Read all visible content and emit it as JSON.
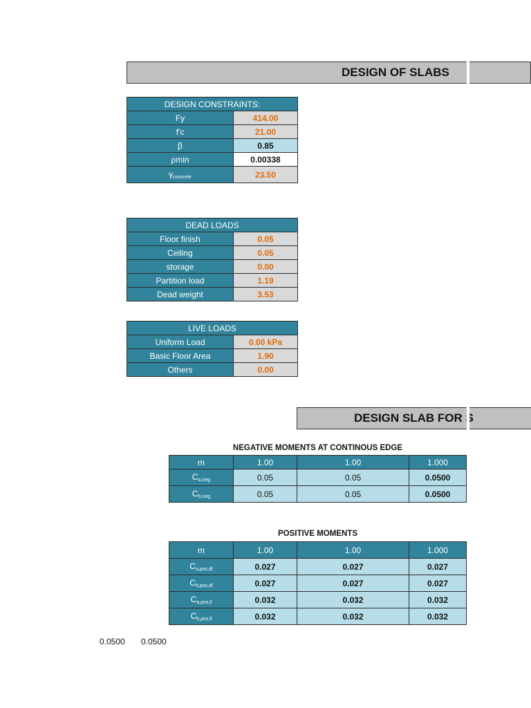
{
  "title1": "DESIGN OF SLABS",
  "title2": "DESIGN SLAB FOR S",
  "constraints": {
    "header": "DESIGN CONSTRAINTS:",
    "rows": [
      {
        "label": "Fy",
        "value": "414.00"
      },
      {
        "label": "f'c",
        "value": "21.00"
      },
      {
        "label": "β",
        "value": "0.85"
      },
      {
        "label": "ρmin",
        "value": "0.00338"
      },
      {
        "label": "γ",
        "label_sub": "concrete",
        "value": "23.50"
      }
    ]
  },
  "dead_loads": {
    "header": "DEAD LOADS",
    "rows": [
      {
        "label": "Floor finish",
        "value": "0.05"
      },
      {
        "label": "Ceiling",
        "value": "0.05"
      },
      {
        "label": "storage",
        "value": "0.00"
      },
      {
        "label": "Partition load",
        "value": "1.19"
      },
      {
        "label": "Dead weight",
        "value": "3.53"
      }
    ]
  },
  "live_loads": {
    "header": "LIVE LOADS",
    "rows": [
      {
        "label": "Uniform Load",
        "value": "0.00 kPa"
      },
      {
        "label": "Basic Floor Area",
        "value": "1.90"
      },
      {
        "label": "Others",
        "value": "0.00"
      }
    ]
  },
  "negative": {
    "caption": "NEGATIVE MOMENTS AT CONTINOUS EDGE",
    "header": {
      "label": "m",
      "values": [
        "1.00",
        "1.00",
        "1.000"
      ]
    },
    "rows": [
      {
        "label": "C",
        "sub": "a,neg",
        "values": [
          "0.05",
          "0.05",
          "0.0500"
        ]
      },
      {
        "label": "C",
        "sub": "b,neg",
        "values": [
          "0.05",
          "0.05",
          "0.0500"
        ]
      }
    ]
  },
  "positive": {
    "caption": "POSITIVE MOMENTS",
    "header": {
      "label": "m",
      "values": [
        "1.00",
        "1.00",
        "1.000"
      ]
    },
    "rows": [
      {
        "label": "C",
        "sub": "a,pos,dl",
        "values": [
          "0.027",
          "0.027",
          "0.027"
        ]
      },
      {
        "label": "C",
        "sub": "b,pos,dl",
        "values": [
          "0.027",
          "0.027",
          "0.027"
        ]
      },
      {
        "label": "C",
        "sub": "a,pos,ll",
        "values": [
          "0.032",
          "0.032",
          "0.032"
        ]
      },
      {
        "label": "C",
        "sub": "b,pos,ll",
        "values": [
          "0.032",
          "0.032",
          "0.032"
        ]
      }
    ]
  },
  "footer_values": [
    "0.0500",
    "0.0500"
  ]
}
